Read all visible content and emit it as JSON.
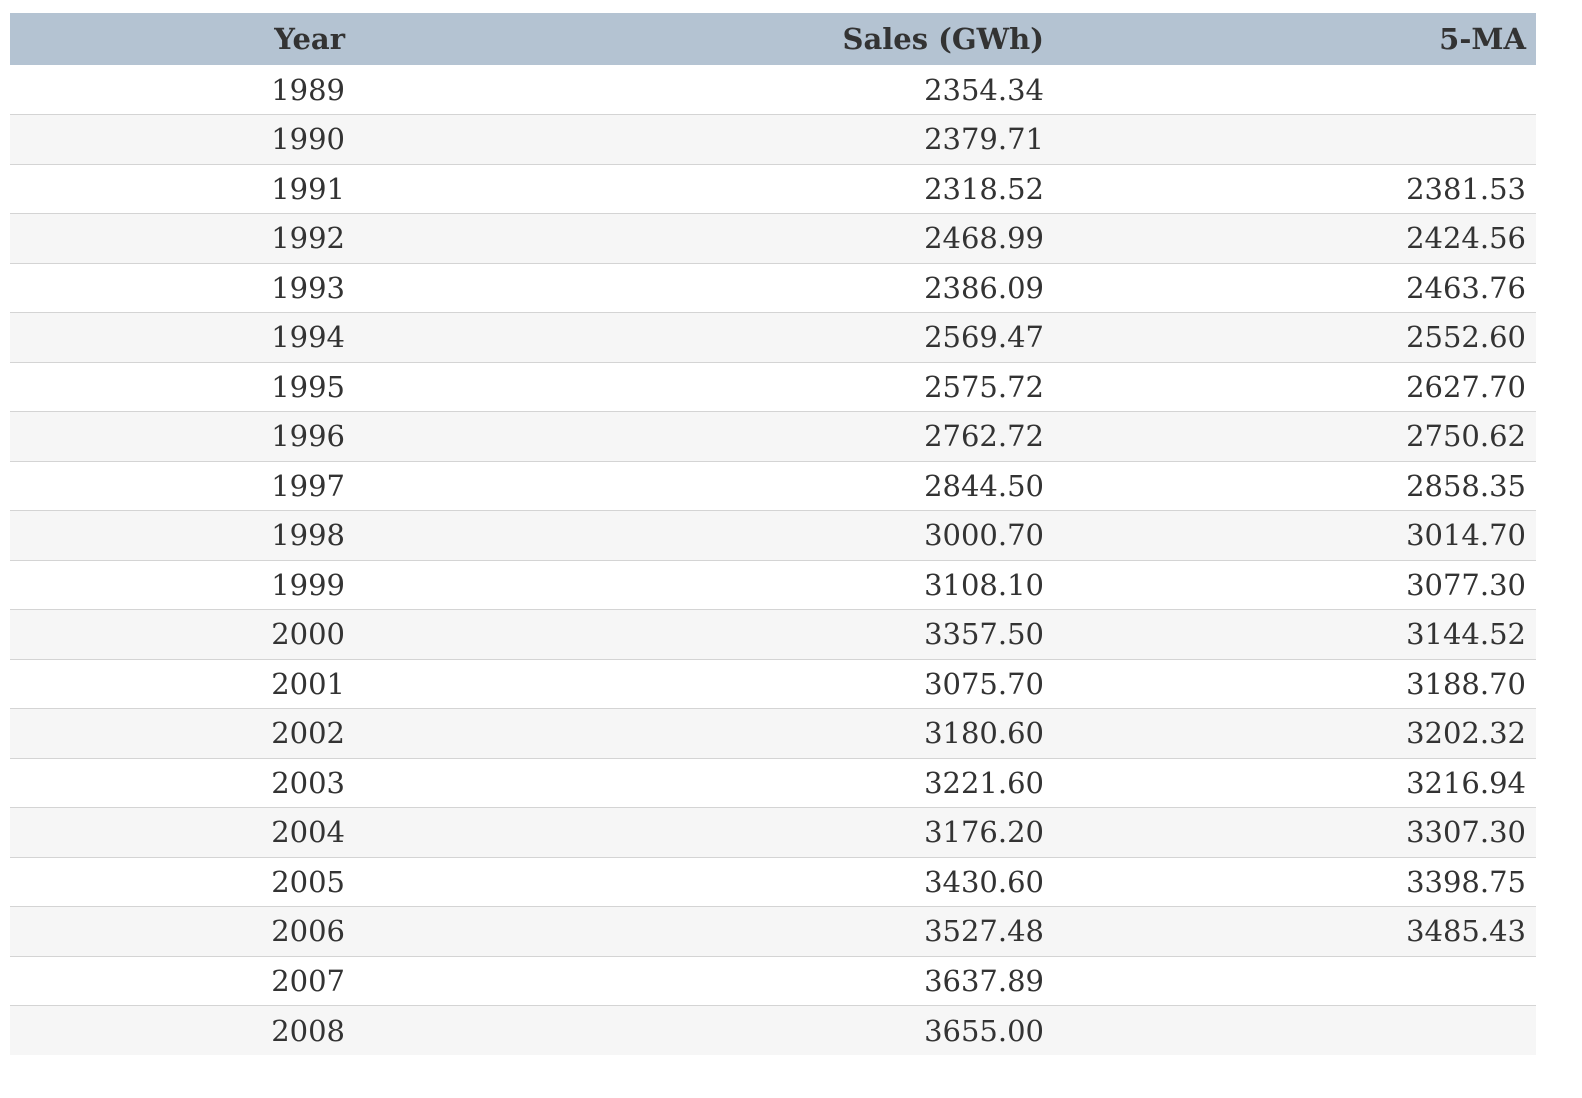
{
  "table": {
    "headers": [
      "Year",
      "Sales (GWh)",
      "5-MA"
    ],
    "rows": [
      [
        "1989",
        "2354.34",
        ""
      ],
      [
        "1990",
        "2379.71",
        ""
      ],
      [
        "1991",
        "2318.52",
        "2381.53"
      ],
      [
        "1992",
        "2468.99",
        "2424.56"
      ],
      [
        "1993",
        "2386.09",
        "2463.76"
      ],
      [
        "1994",
        "2569.47",
        "2552.60"
      ],
      [
        "1995",
        "2575.72",
        "2627.70"
      ],
      [
        "1996",
        "2762.72",
        "2750.62"
      ],
      [
        "1997",
        "2844.50",
        "2858.35"
      ],
      [
        "1998",
        "3000.70",
        "3014.70"
      ],
      [
        "1999",
        "3108.10",
        "3077.30"
      ],
      [
        "2000",
        "3357.50",
        "3144.52"
      ],
      [
        "2001",
        "3075.70",
        "3188.70"
      ],
      [
        "2002",
        "3180.60",
        "3202.32"
      ],
      [
        "2003",
        "3221.60",
        "3216.94"
      ],
      [
        "2004",
        "3176.20",
        "3307.30"
      ],
      [
        "2005",
        "3430.60",
        "3398.75"
      ],
      [
        "2006",
        "3527.48",
        "3485.43"
      ],
      [
        "2007",
        "3637.89",
        ""
      ],
      [
        "2008",
        "3655.00",
        ""
      ]
    ]
  },
  "colors": {
    "header_background": "#b4c3d2",
    "stripe_background": "#f6f6f6",
    "row_divider": "#d4d4d4",
    "text": "#333333"
  }
}
